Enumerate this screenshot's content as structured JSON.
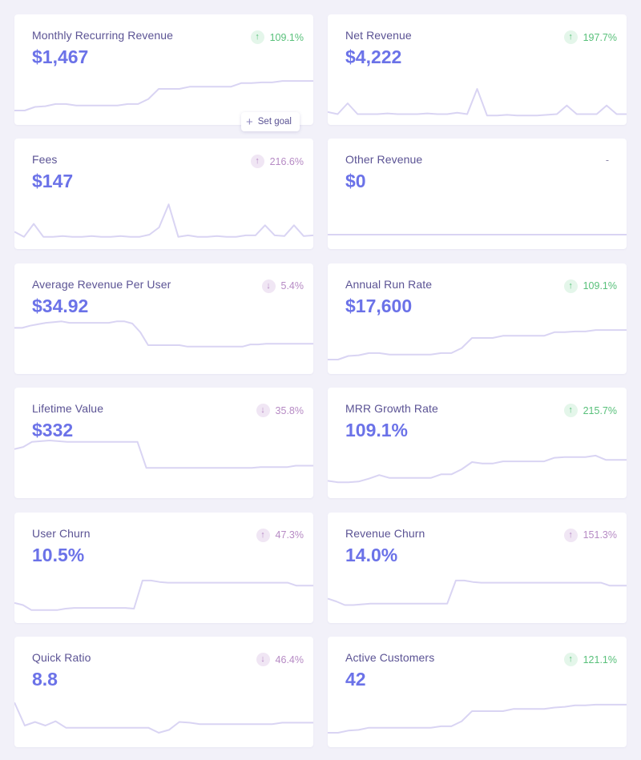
{
  "cards": [
    {
      "id": "mrr",
      "label": "Monthly Recurring Revenue",
      "value": "$1,467",
      "change": "109.1%",
      "direction": "up",
      "sentiment": "good",
      "icon": "arrow-up-icon",
      "spark": [
        20,
        20,
        25,
        26,
        29,
        29,
        27,
        27,
        27,
        27,
        27,
        29,
        29,
        36,
        50,
        50,
        50,
        53,
        53,
        53,
        53,
        53,
        58,
        58,
        59,
        59,
        61,
        61,
        61,
        61
      ]
    },
    {
      "id": "net-revenue",
      "label": "Net Revenue",
      "value": "$4,222",
      "change": "197.7%",
      "direction": "up",
      "sentiment": "good",
      "icon": "arrow-up-icon",
      "spark": [
        18,
        15,
        30,
        15,
        15,
        15,
        16,
        15,
        15,
        15,
        16,
        15,
        15,
        17,
        15,
        50,
        13,
        13,
        14,
        13,
        13,
        13,
        14,
        15,
        27,
        15,
        15,
        15,
        27,
        15,
        15
      ]
    },
    {
      "id": "fees",
      "label": "Fees",
      "value": "$147",
      "change": "216.6%",
      "direction": "up",
      "sentiment": "bad",
      "icon": "arrow-up-icon",
      "spark": [
        24,
        17,
        35,
        17,
        17,
        18,
        17,
        17,
        18,
        17,
        17,
        18,
        17,
        17,
        20,
        30,
        62,
        17,
        19,
        17,
        17,
        18,
        17,
        17,
        19,
        19,
        33,
        19,
        18,
        33,
        18,
        19
      ]
    },
    {
      "id": "other-revenue",
      "label": "Other Revenue",
      "value": "$0",
      "change": "-",
      "direction": "none",
      "sentiment": "none",
      "icon": "",
      "spark": [
        20,
        20,
        20,
        20,
        20,
        20,
        20,
        20,
        20,
        20,
        20,
        20,
        20,
        20,
        20,
        20,
        20,
        20,
        20,
        20,
        20,
        20,
        20,
        20,
        20,
        20,
        20,
        20,
        20,
        20
      ]
    },
    {
      "id": "arpu",
      "label": "Average Revenue Per User",
      "value": "$34.92",
      "change": "5.4%",
      "direction": "down",
      "sentiment": "bad",
      "icon": "arrow-down-icon",
      "spark": [
        64,
        64,
        67,
        69,
        71,
        72,
        73,
        71,
        71,
        71,
        71,
        71,
        71,
        73,
        73,
        70,
        58,
        40,
        40,
        40,
        40,
        40,
        38,
        38,
        38,
        38,
        38,
        38,
        38,
        38,
        41,
        41,
        42,
        42,
        42,
        42,
        42,
        42,
        42
      ]
    },
    {
      "id": "annual-run-rate",
      "label": "Annual Run Rate",
      "value": "$17,600",
      "change": "109.1%",
      "direction": "up",
      "sentiment": "good",
      "icon": "arrow-up-icon",
      "spark": [
        20,
        20,
        25,
        26,
        29,
        29,
        27,
        27,
        27,
        27,
        27,
        29,
        29,
        36,
        50,
        50,
        50,
        53,
        53,
        53,
        53,
        53,
        58,
        58,
        59,
        59,
        61,
        61,
        61,
        61
      ]
    },
    {
      "id": "lifetime-value",
      "label": "Lifetime Value",
      "value": "$332",
      "change": "35.8%",
      "direction": "down",
      "sentiment": "bad",
      "icon": "arrow-down-icon",
      "spark": [
        68,
        71,
        78,
        79,
        80,
        79,
        78,
        78,
        78,
        78,
        78,
        78,
        78,
        78,
        78,
        42,
        42,
        42,
        42,
        42,
        42,
        42,
        42,
        42,
        42,
        42,
        42,
        42,
        43,
        43,
        43,
        43,
        45,
        45,
        45
      ]
    },
    {
      "id": "mrr-growth-rate",
      "label": "MRR Growth Rate",
      "value": "109.1%",
      "change": "215.7%",
      "direction": "up",
      "sentiment": "good",
      "icon": "arrow-up-icon",
      "spark": [
        24,
        22,
        22,
        23,
        27,
        32,
        28,
        28,
        28,
        28,
        28,
        33,
        33,
        40,
        50,
        48,
        48,
        51,
        51,
        51,
        51,
        51,
        56,
        57,
        57,
        57,
        59,
        53,
        53,
        53
      ]
    },
    {
      "id": "user-churn",
      "label": "User Churn",
      "value": "10.5%",
      "change": "47.3%",
      "direction": "up",
      "sentiment": "bad",
      "icon": "arrow-up-icon",
      "spark": [
        28,
        25,
        18,
        18,
        18,
        18,
        20,
        21,
        21,
        21,
        21,
        21,
        21,
        21,
        20,
        59,
        59,
        57,
        56,
        56,
        56,
        56,
        56,
        56,
        56,
        56,
        56,
        56,
        56,
        56,
        56,
        56,
        56,
        52,
        52,
        52
      ]
    },
    {
      "id": "revenue-churn",
      "label": "Revenue Churn",
      "value": "14.0%",
      "change": "151.3%",
      "direction": "up",
      "sentiment": "bad",
      "icon": "arrow-up-icon",
      "spark": [
        34,
        30,
        25,
        25,
        26,
        27,
        27,
        27,
        27,
        27,
        27,
        27,
        27,
        27,
        27,
        59,
        59,
        57,
        56,
        56,
        56,
        56,
        56,
        56,
        56,
        56,
        56,
        56,
        56,
        56,
        56,
        56,
        56,
        52,
        52,
        52
      ]
    },
    {
      "id": "quick-ratio",
      "label": "Quick Ratio",
      "value": "8.8",
      "change": "46.4%",
      "direction": "down",
      "sentiment": "bad",
      "icon": "arrow-down-icon",
      "spark": [
        62,
        30,
        35,
        30,
        36,
        27,
        27,
        27,
        27,
        27,
        27,
        27,
        27,
        27,
        20,
        24,
        35,
        34,
        32,
        32,
        32,
        32,
        32,
        32,
        32,
        32,
        34,
        34,
        34,
        34
      ]
    },
    {
      "id": "active-customers",
      "label": "Active Customers",
      "value": "42",
      "change": "121.1%",
      "direction": "up",
      "sentiment": "good",
      "icon": "arrow-up-icon",
      "spark": [
        20,
        20,
        23,
        24,
        27,
        27,
        27,
        27,
        27,
        27,
        27,
        29,
        29,
        36,
        50,
        50,
        50,
        50,
        53,
        53,
        53,
        53,
        55,
        56,
        58,
        58,
        59,
        59,
        59,
        59
      ]
    }
  ],
  "goal_button": {
    "label": "Set goal",
    "icon": "plus-icon"
  },
  "colors": {
    "spark": "#d9d4f3",
    "value": "#6b72e8",
    "label": "#5b5394",
    "good": "#58c07a",
    "bad": "#b68ac4"
  }
}
